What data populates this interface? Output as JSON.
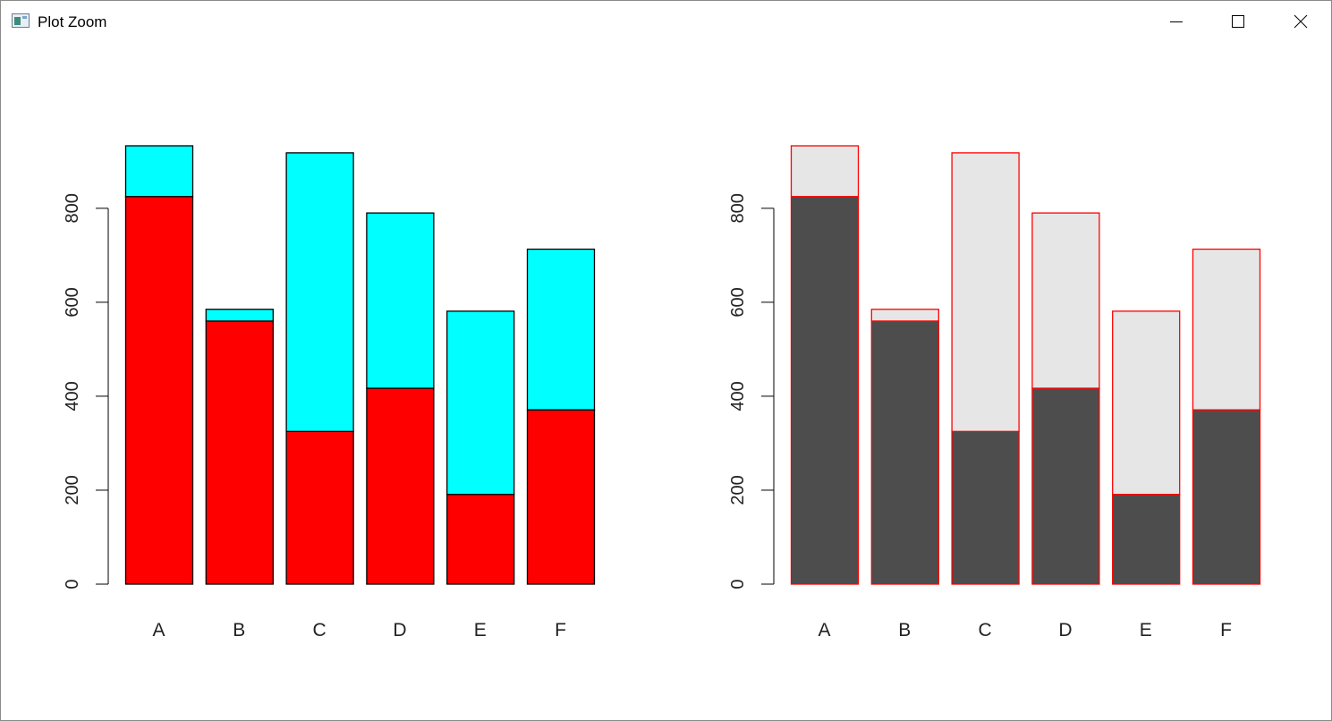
{
  "window": {
    "title": "Plot Zoom",
    "icons": {
      "app": "plot-window-icon",
      "minimize": "minimize-icon",
      "maximize": "maximize-icon",
      "close": "close-icon"
    }
  },
  "chart_data": [
    {
      "type": "bar",
      "stacked": true,
      "categories": [
        "A",
        "B",
        "C",
        "D",
        "E",
        "F"
      ],
      "series": [
        {
          "values": [
            825,
            560,
            325,
            417,
            191,
            371
          ],
          "color": "#ff0000"
        },
        {
          "values": [
            108,
            25,
            593,
            373,
            390,
            342
          ],
          "color": "#00ffff"
        }
      ],
      "y_ticks": [
        0,
        200,
        400,
        600,
        800
      ],
      "y_tick_labels": [
        "0",
        "200",
        "400",
        "600",
        "800"
      ],
      "ylim": [
        0,
        933
      ],
      "border_color": "#000000",
      "title": "",
      "xlabel": "",
      "ylabel": ""
    },
    {
      "type": "bar",
      "stacked": true,
      "categories": [
        "A",
        "B",
        "C",
        "D",
        "E",
        "F"
      ],
      "series": [
        {
          "values": [
            825,
            560,
            325,
            417,
            191,
            371
          ],
          "color": "#4d4d4d"
        },
        {
          "values": [
            108,
            25,
            593,
            373,
            390,
            342
          ],
          "color": "#e6e6e6"
        }
      ],
      "y_ticks": [
        0,
        200,
        400,
        600,
        800
      ],
      "y_tick_labels": [
        "0",
        "200",
        "400",
        "600",
        "800"
      ],
      "ylim": [
        0,
        933
      ],
      "border_color": "#ff0000",
      "title": "",
      "xlabel": "",
      "ylabel": ""
    }
  ]
}
